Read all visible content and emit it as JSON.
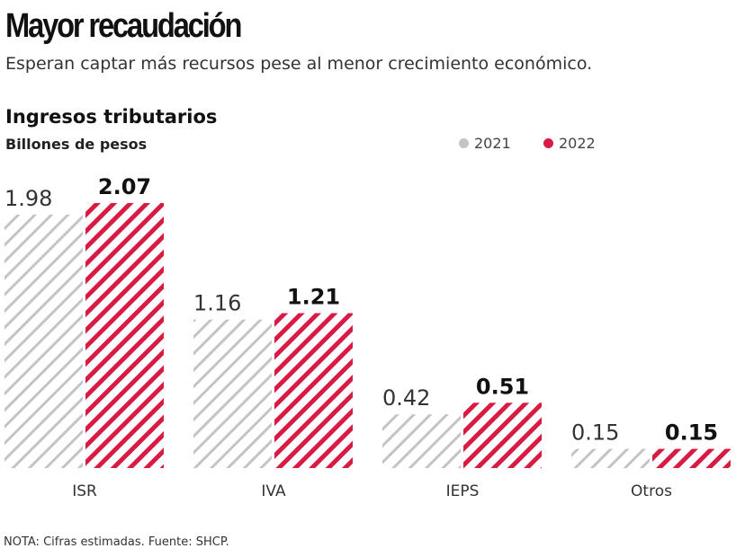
{
  "title": "Mayor recaudación",
  "subtitle": "Esperan captar más recursos pese al menor crecimiento económico.",
  "note": "NOTA: Cifras estimadas. Fuente: SHCP.",
  "chart_data": {
    "type": "bar",
    "title": "Ingresos tributarios",
    "ylabel": "Billones de pesos",
    "xlabel": "",
    "categories": [
      "ISR",
      "IVA",
      "IEPS",
      "Otros"
    ],
    "series": [
      {
        "name": "2021",
        "values": [
          1.98,
          1.16,
          0.42,
          0.15
        ],
        "labels": [
          "1.98",
          "1.16",
          "0.42",
          "0.15"
        ],
        "color": "#c4c4c4"
      },
      {
        "name": "2022",
        "values": [
          2.07,
          1.21,
          0.51,
          0.15
        ],
        "labels": [
          "2.07",
          "1.21",
          "0.51",
          "0.15"
        ],
        "color": "#d81b44"
      }
    ],
    "ylim": [
      0,
      2.1
    ],
    "grid": false,
    "legend": "top-right"
  }
}
